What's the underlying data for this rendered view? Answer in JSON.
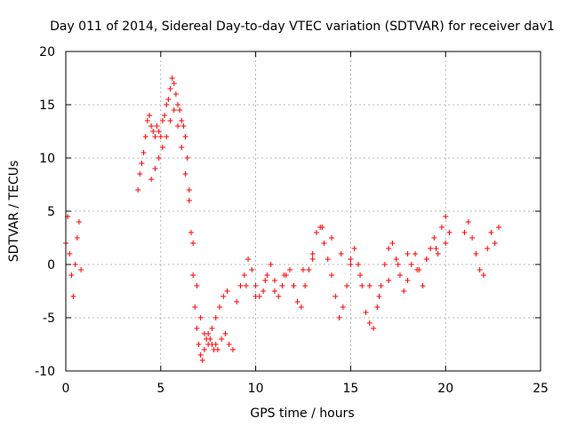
{
  "chart_data": {
    "type": "scatter",
    "title": "Day 011 of 2014, Sidereal Day-to-day VTEC variation (SDTVAR) for receiver dav1",
    "xlabel": "GPS time / hours",
    "ylabel": "SDTVAR / TECUs",
    "xlim": [
      0,
      25
    ],
    "ylim": [
      -10,
      20
    ],
    "xticks": [
      0,
      5,
      10,
      15,
      20,
      25
    ],
    "yticks": [
      -10,
      -5,
      0,
      5,
      10,
      15,
      20
    ],
    "grid": true,
    "marker": "+",
    "color": "#ff0000",
    "series": [
      {
        "name": "SDTVAR",
        "x": [
          0.0,
          0.1,
          0.2,
          0.3,
          0.4,
          0.5,
          0.6,
          0.7,
          0.8,
          3.8,
          3.9,
          4.0,
          4.1,
          4.2,
          4.3,
          4.4,
          4.5,
          4.6,
          4.7,
          4.8,
          4.9,
          5.0,
          5.1,
          5.2,
          5.3,
          5.4,
          5.5,
          5.6,
          5.7,
          5.8,
          5.9,
          6.0,
          6.1,
          6.2,
          6.3,
          6.4,
          6.5,
          6.6,
          6.7,
          6.8,
          6.9,
          7.0,
          7.1,
          7.2,
          7.3,
          7.4,
          7.5,
          7.6,
          7.7,
          7.8,
          7.9,
          8.0,
          8.2,
          8.4,
          8.6,
          8.8,
          4.5,
          4.7,
          4.9,
          5.1,
          5.3,
          5.5,
          5.7,
          5.9,
          6.1,
          6.3,
          6.5,
          6.7,
          6.9,
          7.1,
          7.3,
          7.5,
          7.7,
          7.9,
          8.1,
          8.3,
          8.5,
          9.0,
          9.2,
          9.4,
          9.6,
          9.8,
          10.0,
          10.2,
          10.4,
          10.6,
          10.8,
          11.0,
          11.2,
          11.4,
          11.6,
          11.8,
          12.0,
          12.2,
          12.4,
          12.6,
          12.8,
          13.0,
          13.2,
          13.4,
          13.6,
          13.8,
          14.0,
          14.2,
          14.4,
          14.6,
          14.8,
          15.0,
          15.2,
          15.4,
          15.6,
          15.8,
          16.0,
          16.2,
          16.4,
          16.6,
          16.8,
          17.0,
          17.2,
          17.4,
          17.6,
          17.8,
          18.0,
          18.2,
          18.4,
          18.6,
          18.8,
          19.0,
          19.2,
          19.4,
          19.6,
          19.8,
          20.0,
          20.2,
          9.5,
          10.0,
          10.5,
          11.0,
          11.5,
          12.0,
          12.5,
          13.0,
          13.5,
          14.0,
          14.5,
          15.0,
          15.5,
          16.0,
          16.5,
          17.0,
          17.5,
          18.0,
          18.5,
          19.0,
          19.5,
          20.0,
          21.0,
          21.2,
          21.4,
          21.6,
          21.8,
          22.0,
          22.2,
          22.4,
          22.6,
          22.8
        ],
        "y": [
          2.0,
          4.5,
          1.0,
          -1.0,
          -3.0,
          0.0,
          2.5,
          4.0,
          -0.5,
          7.0,
          8.5,
          9.5,
          10.5,
          12.0,
          13.5,
          14.0,
          13.0,
          12.5,
          12.0,
          13.0,
          12.5,
          12.0,
          13.5,
          14.0,
          15.0,
          15.5,
          16.5,
          17.5,
          17.0,
          16.0,
          15.0,
          14.5,
          13.5,
          13.0,
          12.0,
          10.0,
          7.0,
          3.0,
          -1.0,
          -4.0,
          -6.0,
          -7.5,
          -8.5,
          -9.0,
          -8.0,
          -7.0,
          -6.5,
          -7.0,
          -7.5,
          -8.0,
          -7.5,
          -8.0,
          -7.0,
          -6.5,
          -7.5,
          -8.0,
          8.0,
          9.0,
          10.0,
          11.0,
          12.0,
          13.5,
          14.5,
          13.0,
          11.0,
          8.5,
          6.0,
          2.0,
          -2.0,
          -5.0,
          -6.5,
          -7.5,
          -6.0,
          -5.0,
          -4.0,
          -3.0,
          -2.5,
          -3.5,
          -2.0,
          -1.0,
          0.5,
          -0.5,
          -2.0,
          -3.0,
          -2.5,
          -1.0,
          0.0,
          -1.5,
          -3.0,
          -2.0,
          -1.0,
          -0.5,
          -2.0,
          -3.5,
          -4.0,
          -2.0,
          -0.5,
          1.0,
          3.0,
          3.5,
          2.0,
          0.5,
          -1.0,
          -3.0,
          -5.0,
          -4.0,
          -2.0,
          0.5,
          1.5,
          0.0,
          -2.0,
          -4.5,
          -5.5,
          -6.0,
          -4.0,
          -2.0,
          0.0,
          1.5,
          2.0,
          0.5,
          -1.0,
          -2.5,
          -1.5,
          0.0,
          1.0,
          -0.5,
          -2.0,
          0.5,
          1.5,
          2.5,
          1.0,
          3.5,
          4.5,
          3.0,
          -2.0,
          -3.0,
          -1.5,
          -2.5,
          -1.0,
          -2.0,
          -0.5,
          0.5,
          3.5,
          2.5,
          1.0,
          0.0,
          -1.0,
          -2.0,
          -3.0,
          -1.5,
          0.0,
          1.0,
          -0.5,
          0.5,
          1.5,
          2.0,
          3.0,
          4.0,
          2.5,
          1.0,
          -0.5,
          -1.0,
          1.5,
          3.0,
          2.0,
          3.5
        ]
      }
    ]
  }
}
